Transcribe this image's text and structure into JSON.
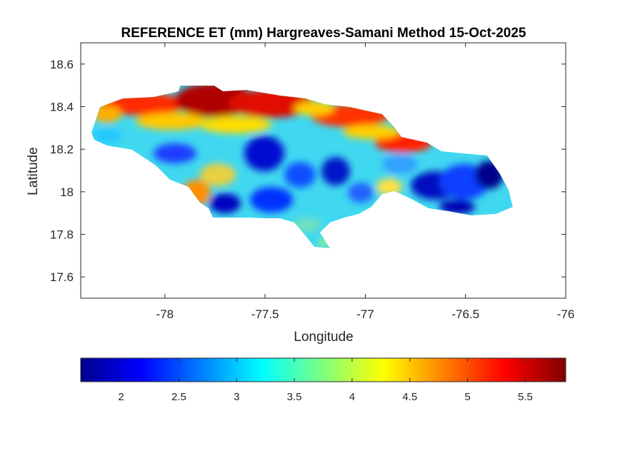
{
  "title": "REFERENCE ET (mm) Hargreaves-Samani Method  15-Oct-2025",
  "map": {
    "xlabel": "Longitude",
    "ylabel": "Latitude",
    "xlim": [
      -78.42,
      -76.0
    ],
    "ylim": [
      17.5,
      18.7
    ],
    "xticks": [
      -78,
      -77.5,
      -77,
      -76.5,
      -76
    ],
    "xtick_labels": [
      "-78",
      "-77.5",
      "-77",
      "-76.5",
      "-76"
    ],
    "yticks": [
      17.6,
      17.8,
      18.0,
      18.2,
      18.4,
      18.6
    ],
    "ytick_labels": [
      "17.6",
      "17.8",
      "18",
      "18.2",
      "18.4",
      "18.6"
    ],
    "colormap": "jet",
    "grid": false
  },
  "colorbar": {
    "orientation": "horizontal",
    "range": [
      1.65,
      5.85
    ],
    "ticks": [
      2,
      2.5,
      3,
      3.5,
      4,
      4.5,
      5,
      5.5
    ],
    "tick_labels": [
      "2",
      "2.5",
      "3",
      "3.5",
      "4",
      "4.5",
      "5",
      "5.5"
    ]
  }
}
